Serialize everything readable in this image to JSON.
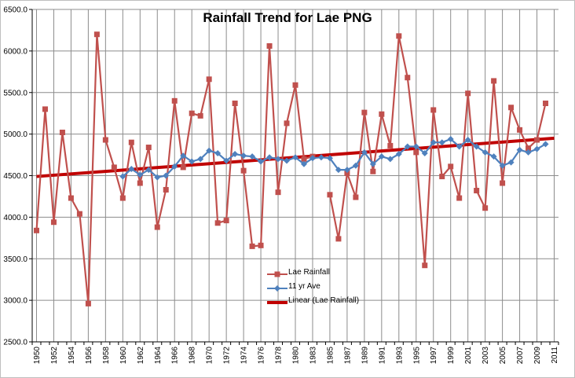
{
  "chart_data": {
    "type": "line",
    "title": "Rainfall Trend for Lae PNG",
    "xlabel": "",
    "ylabel": "",
    "ylim": [
      2500,
      6500
    ],
    "y_ticks": [
      "2500.0",
      "3000.0",
      "3500.0",
      "4000.0",
      "4500.0",
      "5000.0",
      "5500.0",
      "6000.0",
      "6500.0"
    ],
    "y_tick_values": [
      2500,
      3000,
      3500,
      4000,
      4500,
      5000,
      5500,
      6000,
      6500
    ],
    "grid": true,
    "x_tick_labels": [
      "1950",
      "1952",
      "1954",
      "1956",
      "1958",
      "1960",
      "1962",
      "1964",
      "1966",
      "1968",
      "1970",
      "1972",
      "1974",
      "1976",
      "1978",
      "1980",
      "1983",
      "1985",
      "1987",
      "1989",
      "1991",
      "1993",
      "1995",
      "1997",
      "1999",
      "2001",
      "2003",
      "2005",
      "2007",
      "2009",
      "2011"
    ],
    "x_tick_index": [
      0,
      2,
      4,
      6,
      8,
      10,
      12,
      14,
      16,
      18,
      20,
      22,
      24,
      26,
      28,
      30,
      32,
      34,
      36,
      38,
      40,
      42,
      44,
      46,
      48,
      50,
      52,
      54,
      56,
      58,
      60
    ],
    "n_points": 61,
    "series": [
      {
        "name": "Lae Rainfall",
        "color": "#c0504d",
        "marker": "square",
        "values": [
          3840,
          5300,
          3940,
          5020,
          4230,
          4040,
          2960,
          6200,
          4930,
          4600,
          4230,
          4900,
          4410,
          4840,
          3880,
          4330,
          5400,
          4600,
          5250,
          5220,
          5660,
          3930,
          3960,
          5370,
          4560,
          3650,
          3660,
          6060,
          4300,
          5130,
          5590,
          4700,
          4730,
          null,
          4270,
          3740,
          4530,
          4240,
          5260,
          4550,
          5240,
          4860,
          6180,
          5680,
          4780,
          3420,
          5290,
          4490,
          4610,
          4230,
          5490,
          4320,
          4110,
          5640,
          4410,
          5320,
          5050,
          4830,
          4930,
          5370,
          null
        ]
      },
      {
        "name": "11 yr Ave",
        "color": "#4f81bd",
        "marker": "diamond",
        "values": [
          null,
          null,
          null,
          null,
          null,
          null,
          null,
          null,
          null,
          null,
          4490,
          4580,
          4510,
          4570,
          4480,
          4500,
          4610,
          4740,
          4670,
          4700,
          4800,
          4770,
          4680,
          4760,
          4740,
          4730,
          4670,
          4720,
          4700,
          4680,
          4720,
          4640,
          4710,
          4720,
          4710,
          4570,
          4570,
          4620,
          4780,
          4640,
          4730,
          4700,
          4760,
          4850,
          4850,
          4770,
          4900,
          4900,
          4940,
          4850,
          4930,
          4850,
          4780,
          4730,
          4620,
          4660,
          4810,
          4780,
          4820,
          4880,
          null
        ]
      },
      {
        "name": "Linear (Lae Rainfall)",
        "color": "#c00000",
        "type": "trendline",
        "start": 4490,
        "end": 4950
      }
    ]
  },
  "legend": {
    "items": [
      {
        "label": "Lae Rainfall"
      },
      {
        "label": "11 yr Ave"
      },
      {
        "label": "Linear (Lae Rainfall)"
      }
    ]
  }
}
